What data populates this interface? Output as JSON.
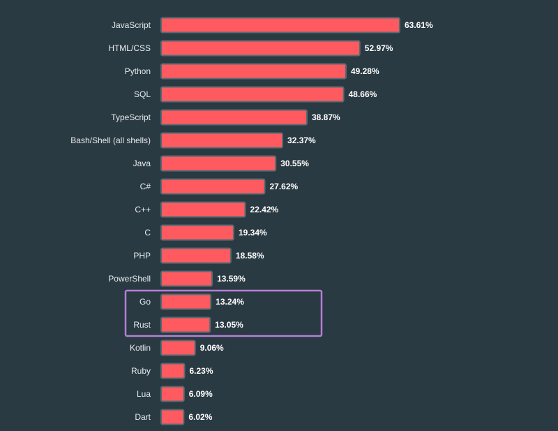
{
  "chart_data": {
    "type": "bar",
    "orientation": "horizontal",
    "title": "",
    "xlabel": "",
    "ylabel": "",
    "xlim": [
      0,
      63.61
    ],
    "categories": [
      "JavaScript",
      "HTML/CSS",
      "Python",
      "SQL",
      "TypeScript",
      "Bash/Shell (all shells)",
      "Java",
      "C#",
      "C++",
      "C",
      "PHP",
      "PowerShell",
      "Go",
      "Rust",
      "Kotlin",
      "Ruby",
      "Lua",
      "Dart"
    ],
    "values": [
      63.61,
      52.97,
      49.28,
      48.66,
      38.87,
      32.37,
      30.55,
      27.62,
      22.42,
      19.34,
      18.58,
      13.59,
      13.24,
      13.05,
      9.06,
      6.23,
      6.09,
      6.02
    ],
    "value_labels": [
      "63.61%",
      "52.97%",
      "49.28%",
      "48.66%",
      "38.87%",
      "32.37%",
      "30.55%",
      "27.62%",
      "22.42%",
      "19.34%",
      "18.58%",
      "13.59%",
      "13.24%",
      "13.05%",
      "9.06%",
      "6.23%",
      "6.09%",
      "6.02%"
    ],
    "highlighted_categories": [
      "Go",
      "Rust"
    ],
    "grid": false,
    "legend": "none"
  },
  "colors": {
    "background": "#2a3a42",
    "bar_fill": "#ff5a5f",
    "bar_stroke": "#5a6a72",
    "highlight_box": "#b57ed6",
    "text": "#e8eced"
  }
}
